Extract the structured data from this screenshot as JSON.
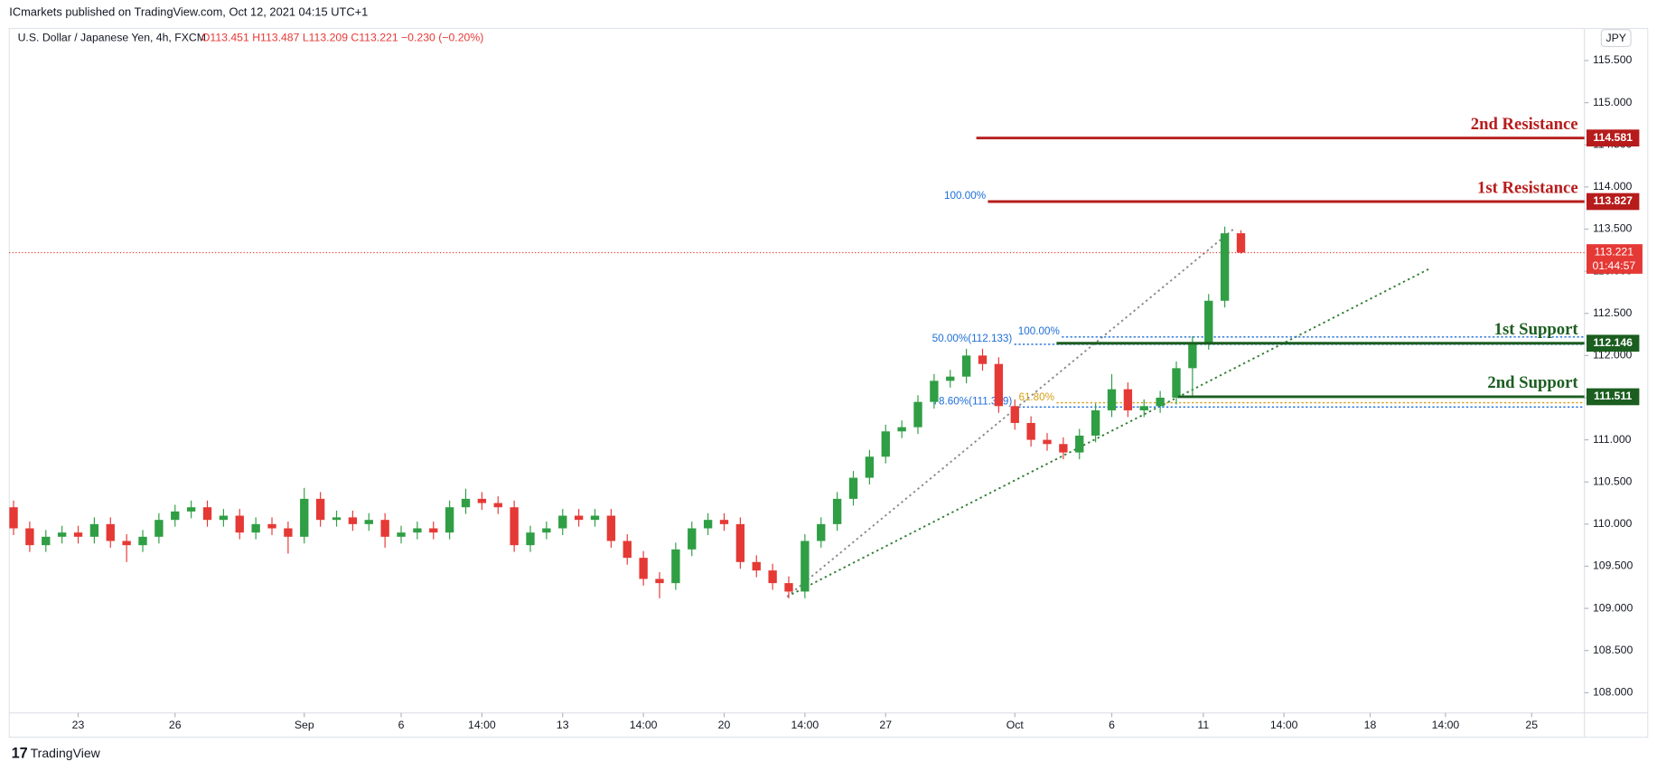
{
  "header": {
    "publisher": "ICmarkets published on TradingView.com, Oct 12, 2021 04:15 UTC+1",
    "footer": "TradingView"
  },
  "chart_data": {
    "type": "candlestick",
    "title": "U.S. Dollar / Japanese Yen, 4h, FXCM",
    "subtitle": "O113.451 H113.487 L113.209 C113.221 −0.230 (−0.20%)",
    "currency": "JPY",
    "up_color": "#2f9e44",
    "down_color": "#e53935",
    "x": [
      0,
      3,
      6,
      9,
      12,
      15,
      18,
      21,
      24,
      27,
      30,
      33,
      36,
      39,
      42,
      45,
      48,
      51,
      54,
      57,
      60,
      63,
      66,
      69,
      72,
      75,
      78,
      81,
      84,
      87,
      90,
      93,
      96,
      99,
      102,
      105,
      108,
      111,
      114,
      117,
      120,
      123,
      126,
      129,
      132,
      135,
      138,
      141,
      144,
      147,
      150,
      153,
      156,
      159,
      162,
      165,
      168,
      171,
      174,
      177,
      180,
      183,
      186,
      189,
      192,
      195,
      198,
      201,
      204,
      207,
      210,
      213,
      216,
      219,
      222,
      225,
      228
    ],
    "open": [
      110.2,
      109.95,
      109.75,
      109.85,
      109.9,
      109.85,
      110.0,
      109.8,
      109.75,
      109.85,
      110.05,
      110.15,
      110.2,
      110.05,
      110.1,
      109.9,
      110.0,
      109.95,
      109.85,
      110.3,
      110.05,
      110.08,
      110.0,
      110.05,
      109.85,
      109.9,
      109.95,
      109.9,
      110.2,
      110.3,
      110.25,
      110.2,
      109.75,
      109.9,
      109.95,
      110.1,
      110.05,
      110.1,
      109.8,
      109.6,
      109.35,
      109.3,
      109.7,
      109.95,
      110.05,
      110.0,
      109.55,
      109.45,
      109.3,
      109.2,
      109.8,
      110.0,
      110.3,
      110.55,
      110.8,
      111.1,
      111.15,
      111.45,
      111.7,
      111.75,
      112.0,
      111.9,
      111.4,
      111.2,
      111.0,
      110.95,
      110.85,
      111.05,
      111.35,
      111.6,
      111.35,
      111.4,
      111.5,
      111.85,
      112.15,
      112.65,
      113.451
    ],
    "high": [
      110.28,
      110.03,
      109.93,
      109.98,
      109.98,
      110.08,
      110.08,
      109.88,
      109.93,
      110.13,
      110.23,
      110.28,
      110.28,
      110.18,
      110.18,
      110.08,
      110.08,
      110.03,
      110.43,
      110.38,
      110.16,
      110.16,
      110.13,
      110.13,
      109.98,
      110.03,
      110.03,
      110.28,
      110.42,
      110.38,
      110.33,
      110.28,
      109.98,
      110.03,
      110.18,
      110.18,
      110.18,
      110.18,
      109.88,
      109.68,
      109.43,
      109.78,
      110.03,
      110.13,
      110.13,
      110.08,
      109.63,
      109.53,
      109.38,
      109.88,
      110.08,
      110.38,
      110.63,
      110.88,
      111.18,
      111.23,
      111.53,
      111.78,
      111.83,
      112.08,
      112.08,
      111.98,
      111.48,
      111.28,
      111.08,
      111.03,
      111.13,
      111.43,
      111.78,
      111.68,
      111.48,
      111.58,
      111.93,
      112.23,
      112.73,
      113.53,
      113.487
    ],
    "low": [
      109.87,
      109.67,
      109.67,
      109.77,
      109.77,
      109.77,
      109.72,
      109.55,
      109.67,
      109.77,
      109.97,
      110.07,
      109.97,
      109.97,
      109.82,
      109.82,
      109.87,
      109.65,
      109.77,
      109.97,
      109.97,
      109.92,
      109.92,
      109.72,
      109.77,
      109.82,
      109.82,
      109.82,
      110.12,
      110.17,
      110.12,
      109.67,
      109.67,
      109.82,
      109.87,
      109.97,
      109.97,
      109.72,
      109.52,
      109.27,
      109.12,
      109.22,
      109.62,
      109.87,
      109.92,
      109.47,
      109.37,
      109.22,
      109.12,
      109.12,
      109.72,
      109.92,
      110.22,
      110.47,
      110.72,
      111.02,
      111.07,
      111.37,
      111.62,
      111.67,
      111.82,
      111.32,
      111.12,
      110.92,
      110.87,
      110.77,
      110.77,
      110.97,
      111.27,
      111.27,
      111.27,
      111.32,
      111.42,
      111.52,
      112.07,
      112.57,
      113.209
    ],
    "close": [
      109.95,
      109.75,
      109.85,
      109.9,
      109.85,
      110.0,
      109.8,
      109.75,
      109.85,
      110.05,
      110.15,
      110.2,
      110.05,
      110.1,
      109.9,
      110.0,
      109.95,
      109.85,
      110.3,
      110.05,
      110.08,
      110.0,
      110.05,
      109.85,
      109.9,
      109.95,
      109.9,
      110.2,
      110.3,
      110.25,
      110.2,
      109.75,
      109.9,
      109.95,
      110.1,
      110.05,
      110.1,
      109.8,
      109.6,
      109.35,
      109.3,
      109.7,
      109.95,
      110.05,
      110.0,
      109.55,
      109.45,
      109.3,
      109.2,
      109.8,
      110.0,
      110.3,
      110.55,
      110.8,
      111.1,
      111.15,
      111.45,
      111.7,
      111.75,
      112.0,
      111.9,
      111.4,
      111.2,
      111.0,
      110.95,
      110.85,
      111.05,
      111.35,
      111.6,
      111.35,
      111.4,
      111.5,
      111.85,
      112.15,
      112.65,
      113.45,
      113.221
    ],
    "xlim": [
      -0.8,
      291.8
    ],
    "xticks": [
      {
        "value": 12,
        "label": "23"
      },
      {
        "value": 30,
        "label": "26"
      },
      {
        "value": 54,
        "label": "Sep"
      },
      {
        "value": 72,
        "label": "6"
      },
      {
        "value": 87,
        "label": "14:00"
      },
      {
        "value": 102,
        "label": "13"
      },
      {
        "value": 117,
        "label": "14:00"
      },
      {
        "value": 132,
        "label": "20"
      },
      {
        "value": 147,
        "label": "14:00"
      },
      {
        "value": 162,
        "label": "27"
      },
      {
        "value": 186,
        "label": "Oct"
      },
      {
        "value": 204,
        "label": "6"
      },
      {
        "value": 221,
        "label": "11"
      },
      {
        "value": 236,
        "label": "14:00"
      },
      {
        "value": 252,
        "label": "18"
      },
      {
        "value": 266,
        "label": "14:00"
      },
      {
        "value": 282,
        "label": "25"
      }
    ],
    "ylim": [
      107.76,
      115.88
    ],
    "yticks": [
      {
        "value": 108,
        "label": "108.000"
      },
      {
        "value": 108.5,
        "label": "108.500"
      },
      {
        "value": 109,
        "label": "109.000"
      },
      {
        "value": 109.5,
        "label": "109.500"
      },
      {
        "value": 110,
        "label": "110.000"
      },
      {
        "value": 110.5,
        "label": "110.500"
      },
      {
        "value": 111,
        "label": "111.000"
      },
      {
        "value": 111.5,
        "label": "111.500"
      },
      {
        "value": 112,
        "label": "112.000"
      },
      {
        "value": 112.5,
        "label": "112.500"
      },
      {
        "value": 113,
        "label": "113.000"
      },
      {
        "value": 113.5,
        "label": "113.500"
      },
      {
        "value": 114,
        "label": "114.000"
      },
      {
        "value": 114.5,
        "label": "114.500"
      },
      {
        "value": 115,
        "label": "115.000"
      },
      {
        "value": 115.5,
        "label": "115.500"
      }
    ],
    "levels": [
      {
        "name": "2nd Resistance",
        "value": 114.581,
        "color": "#b71c1c"
      },
      {
        "name": "1st Resistance",
        "value": 113.827,
        "color": "#b71c1c"
      },
      {
        "name": "1st Support",
        "value": 112.146,
        "color": "#1b5e20"
      },
      {
        "name": "2nd Support",
        "value": 111.511,
        "color": "#1b5e20"
      }
    ],
    "last_price": {
      "value": 113.221,
      "countdown": "01:44:57",
      "color": "#e53935"
    },
    "fib_levels": [
      {
        "label": "100.00%",
        "value": 113.827
      },
      {
        "label": "100.00%",
        "value": 112.22
      },
      {
        "label": "50.00%(112.133)",
        "value": 112.133
      },
      {
        "label": "61.80%",
        "value": 111.44
      },
      {
        "label": "78.60%(111.389)",
        "value": 111.389
      }
    ],
    "trendlines": [
      {
        "x": [
          143.7,
          263
        ],
        "y": [
          109.14,
          113.03
        ],
        "color": "#2e7d32"
      },
      {
        "x": [
          143.7,
          227
        ],
        "y": [
          109.14,
          113.52
        ],
        "color": "#888888"
      }
    ]
  }
}
